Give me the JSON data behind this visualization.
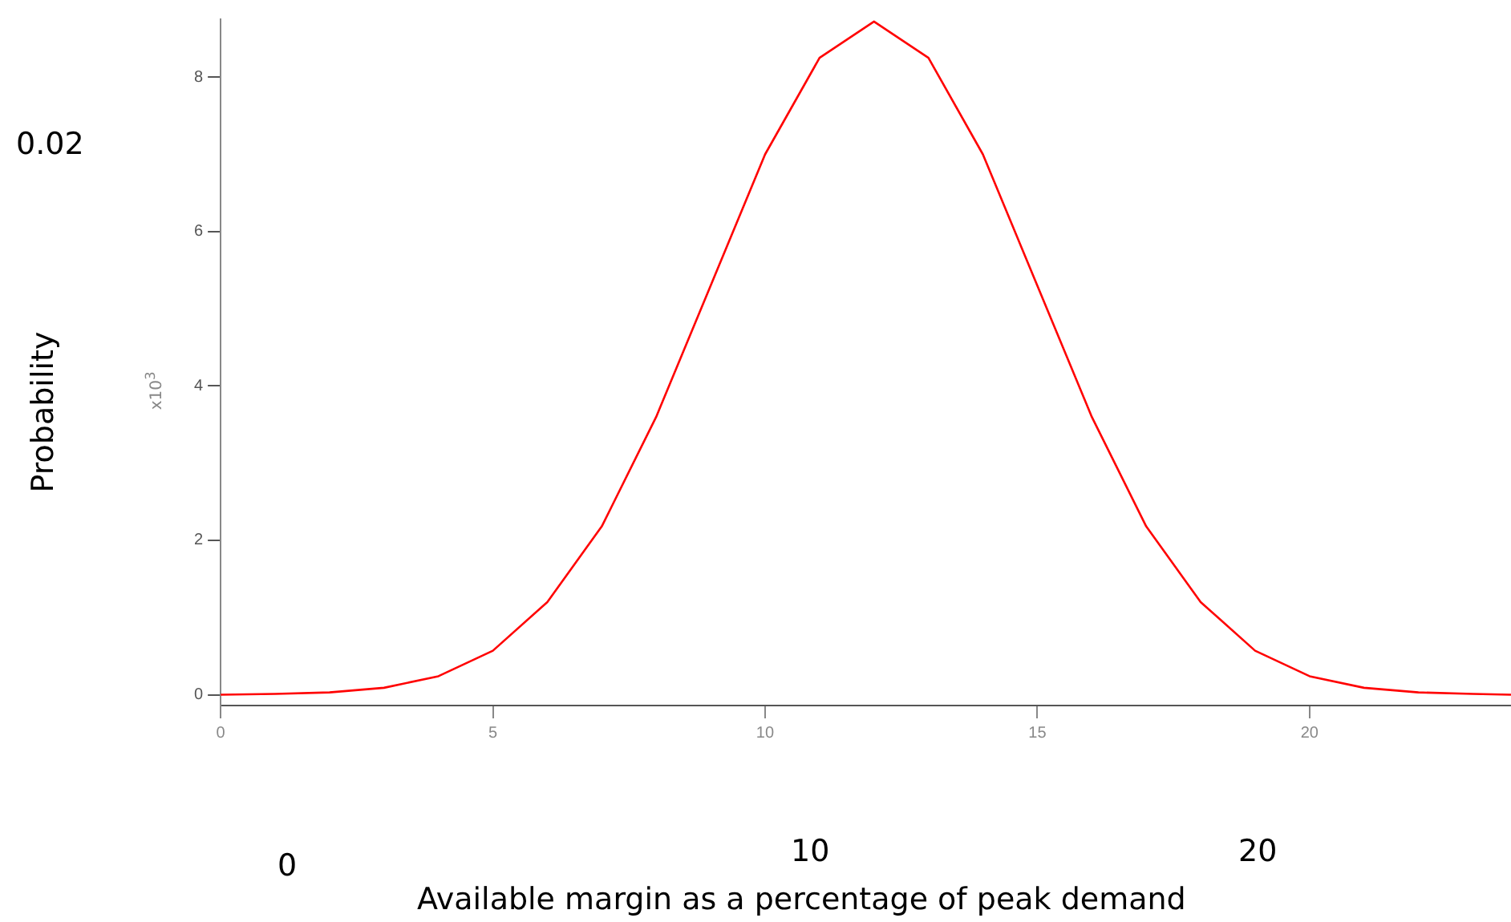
{
  "chart_data": {
    "type": "line",
    "ylabel": "Probability",
    "xlabel": "Available margin as a percentage of peak demand",
    "annotations": [
      "x10$^{3}$",
      "0.02",
      "0",
      "10",
      "20"
    ],
    "x": [
      0,
      1,
      2,
      3,
      4,
      5,
      6,
      7,
      8,
      9,
      10,
      11,
      12,
      13,
      14,
      15,
      16,
      17,
      18,
      19,
      20,
      21,
      22,
      23,
      23.7
    ],
    "series": [
      {
        "color": "#ff0000",
        "values": [
          0,
          0.01,
          0.03,
          0.09,
          0.24,
          0.57,
          1.2,
          2.18,
          3.6,
          5.3,
          7.0,
          8.25,
          8.72,
          8.25,
          7.0,
          5.3,
          3.6,
          2.18,
          1.2,
          0.57,
          0.24,
          0.09,
          0.03,
          0.01,
          0
        ]
      }
    ],
    "xlim": [
      0,
      23.7
    ],
    "xticks": [
      0,
      5,
      10,
      15,
      20
    ],
    "ylim": [
      -0.14,
      8.75
    ],
    "yticks": [
      0,
      2,
      4,
      6,
      8
    ],
    "grid": false,
    "legend": false,
    "marker": "none",
    "line_style": "solid"
  }
}
